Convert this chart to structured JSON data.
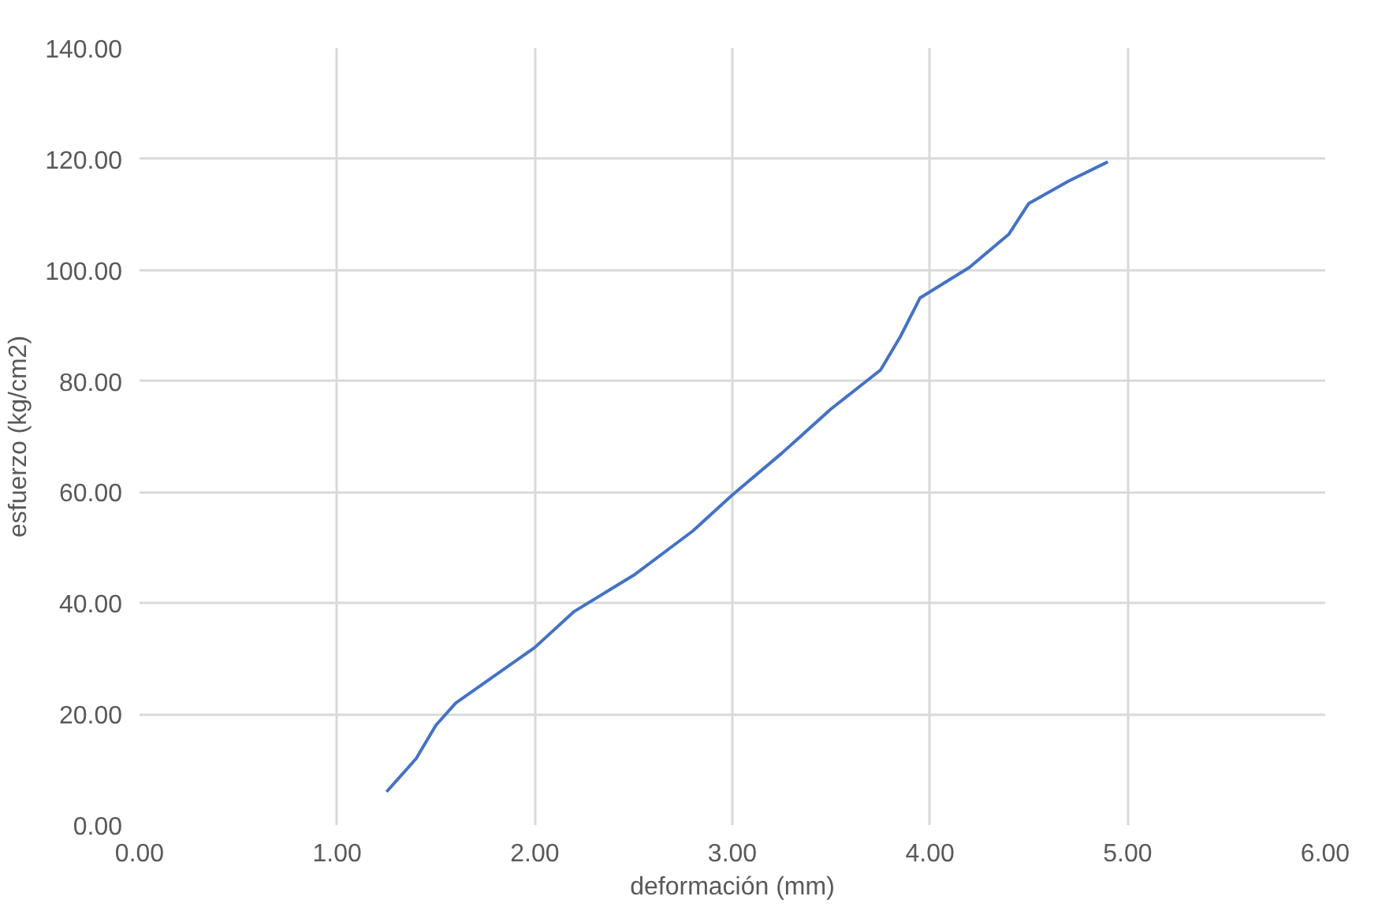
{
  "chart_data": {
    "type": "line",
    "xlabel": "deformación (mm)",
    "ylabel": "esfuerzo (kg/cm2)",
    "x": [
      1.25,
      1.4,
      1.5,
      1.6,
      1.8,
      2.0,
      2.2,
      2.5,
      2.8,
      3.0,
      3.25,
      3.5,
      3.75,
      3.85,
      3.95,
      4.2,
      4.4,
      4.5,
      4.7,
      4.9
    ],
    "series": [
      {
        "color": "#4472c4",
        "values": [
          6,
          12,
          18,
          22,
          27,
          32,
          38.5,
          45,
          53,
          59.5,
          67,
          75,
          82,
          88,
          95,
          100.5,
          106.5,
          112,
          116,
          119.5
        ]
      }
    ],
    "xlim": [
      0,
      6
    ],
    "ylim": [
      0,
      140
    ],
    "xticks": [
      {
        "value": 0,
        "label": "0.00"
      },
      {
        "value": 1,
        "label": "1.00"
      },
      {
        "value": 2,
        "label": "2.00"
      },
      {
        "value": 3,
        "label": "3.00"
      },
      {
        "value": 4,
        "label": "4.00"
      },
      {
        "value": 5,
        "label": "5.00"
      },
      {
        "value": 6,
        "label": "6.00"
      }
    ],
    "yticks": [
      {
        "value": 0,
        "label": "0.00"
      },
      {
        "value": 20,
        "label": "20.00"
      },
      {
        "value": 40,
        "label": "40.00"
      },
      {
        "value": 60,
        "label": "60.00"
      },
      {
        "value": 80,
        "label": "80.00"
      },
      {
        "value": 100,
        "label": "100.00"
      },
      {
        "value": 120,
        "label": "120.00"
      },
      {
        "value": 140,
        "label": "140.00"
      }
    ],
    "grid": true,
    "marker": "none",
    "line_style": "solid"
  }
}
